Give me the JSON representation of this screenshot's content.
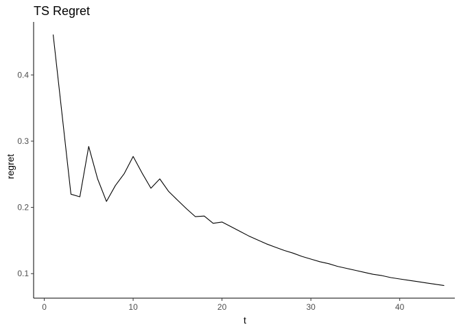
{
  "chart_data": {
    "type": "line",
    "title": "TS Regret",
    "xlabel": "t",
    "ylabel": "regret",
    "xlim": [
      -1.2,
      46.2
    ],
    "ylim": [
      0.063,
      0.48
    ],
    "x_ticks": [
      0,
      10,
      20,
      30,
      40
    ],
    "y_ticks": [
      0.1,
      0.2,
      0.3,
      0.4
    ],
    "y_tick_labels": [
      "0.1",
      "0.2",
      "0.3",
      "0.4"
    ],
    "grid": false,
    "line_color": "#000000",
    "series": [
      {
        "x": [
          1,
          2,
          3,
          4,
          5,
          6,
          7,
          8,
          9,
          10,
          11,
          12,
          13,
          14,
          15,
          16,
          17,
          18,
          19,
          20,
          21,
          22,
          23,
          24,
          25,
          26,
          27,
          28,
          29,
          30,
          31,
          32,
          33,
          34,
          35,
          36,
          37,
          38,
          39,
          40,
          41,
          42,
          43,
          44,
          45
        ],
        "values": [
          0.461,
          0.34,
          0.22,
          0.216,
          0.292,
          0.243,
          0.209,
          0.233,
          0.251,
          0.277,
          0.252,
          0.229,
          0.243,
          0.224,
          0.211,
          0.198,
          0.186,
          0.187,
          0.176,
          0.178,
          0.171,
          0.164,
          0.157,
          0.151,
          0.145,
          0.14,
          0.135,
          0.131,
          0.126,
          0.122,
          0.118,
          0.115,
          0.111,
          0.108,
          0.105,
          0.102,
          0.099,
          0.097,
          0.094,
          0.092,
          0.09,
          0.088,
          0.086,
          0.084,
          0.082
        ]
      }
    ]
  }
}
